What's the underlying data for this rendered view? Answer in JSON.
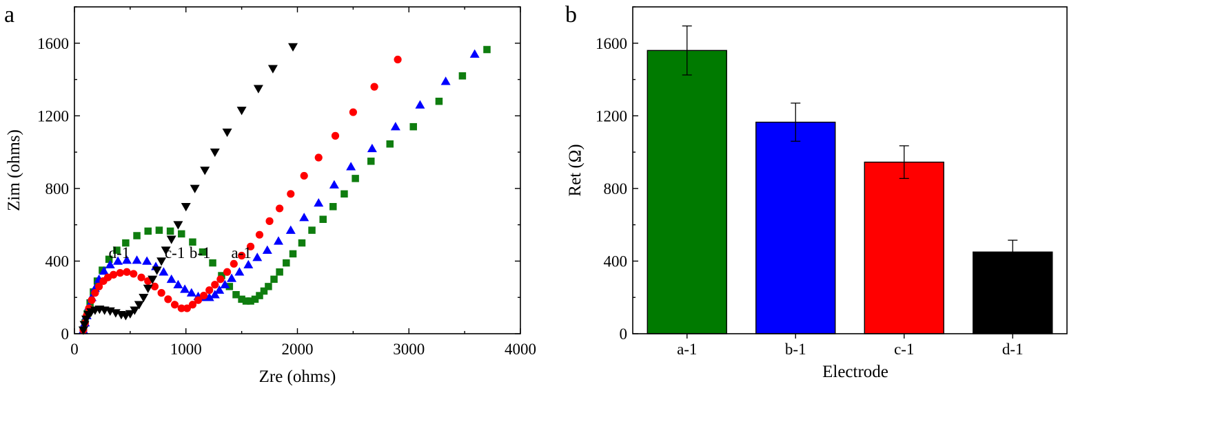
{
  "panels": {
    "a": {
      "letter": "a"
    },
    "b": {
      "letter": "b"
    }
  },
  "chart_data": [
    {
      "type": "scatter",
      "panel": "a",
      "xlabel": "Zre (ohms)",
      "ylabel": "Zim (ohms)",
      "xlim": [
        0,
        4000
      ],
      "ylim": [
        0,
        1800
      ],
      "xticks": [
        0,
        1000,
        2000,
        3000,
        4000
      ],
      "yticks": [
        0,
        400,
        800,
        1200,
        1600
      ],
      "series": [
        {
          "label": "a-1",
          "color": "#0f7d0f",
          "marker": "square",
          "points": [
            [
              80,
              20
            ],
            [
              95,
              60
            ],
            [
              115,
              110
            ],
            [
              140,
              170
            ],
            [
              170,
              230
            ],
            [
              205,
              290
            ],
            [
              250,
              350
            ],
            [
              310,
              410
            ],
            [
              380,
              460
            ],
            [
              460,
              500
            ],
            [
              560,
              540
            ],
            [
              660,
              565
            ],
            [
              760,
              570
            ],
            [
              860,
              565
            ],
            [
              960,
              550
            ],
            [
              1060,
              505
            ],
            [
              1150,
              450
            ],
            [
              1240,
              390
            ],
            [
              1320,
              320
            ],
            [
              1390,
              260
            ],
            [
              1450,
              215
            ],
            [
              1500,
              190
            ],
            [
              1540,
              180
            ],
            [
              1580,
              180
            ],
            [
              1620,
              190
            ],
            [
              1660,
              210
            ],
            [
              1700,
              235
            ],
            [
              1740,
              260
            ],
            [
              1790,
              300
            ],
            [
              1840,
              340
            ],
            [
              1900,
              390
            ],
            [
              1960,
              440
            ],
            [
              2040,
              500
            ],
            [
              2130,
              570
            ],
            [
              2230,
              630
            ],
            [
              2320,
              700
            ],
            [
              2420,
              770
            ],
            [
              2520,
              855
            ],
            [
              2660,
              950
            ],
            [
              2830,
              1045
            ],
            [
              3040,
              1140
            ],
            [
              3270,
              1280
            ],
            [
              3480,
              1420
            ],
            [
              3700,
              1565
            ]
          ]
        },
        {
          "label": "b-1",
          "color": "#0000ff",
          "marker": "triangle-up",
          "points": [
            [
              80,
              20
            ],
            [
              95,
              60
            ],
            [
              110,
              100
            ],
            [
              130,
              150
            ],
            [
              155,
              200
            ],
            [
              185,
              250
            ],
            [
              220,
              300
            ],
            [
              265,
              345
            ],
            [
              320,
              380
            ],
            [
              390,
              400
            ],
            [
              470,
              405
            ],
            [
              560,
              405
            ],
            [
              650,
              400
            ],
            [
              730,
              370
            ],
            [
              800,
              340
            ],
            [
              870,
              300
            ],
            [
              930,
              270
            ],
            [
              990,
              245
            ],
            [
              1050,
              225
            ],
            [
              1110,
              205
            ],
            [
              1160,
              200
            ],
            [
              1210,
              200
            ],
            [
              1260,
              215
            ],
            [
              1300,
              240
            ],
            [
              1350,
              270
            ],
            [
              1410,
              305
            ],
            [
              1480,
              340
            ],
            [
              1560,
              380
            ],
            [
              1640,
              420
            ],
            [
              1730,
              460
            ],
            [
              1830,
              510
            ],
            [
              1940,
              570
            ],
            [
              2060,
              640
            ],
            [
              2190,
              720
            ],
            [
              2330,
              820
            ],
            [
              2480,
              920
            ],
            [
              2670,
              1020
            ],
            [
              2880,
              1140
            ],
            [
              3100,
              1260
            ],
            [
              3330,
              1390
            ],
            [
              3590,
              1540
            ]
          ]
        },
        {
          "label": "c-1",
          "color": "#ff0000",
          "marker": "circle",
          "points": [
            [
              80,
              20
            ],
            [
              95,
              60
            ],
            [
              110,
              100
            ],
            [
              130,
              140
            ],
            [
              155,
              185
            ],
            [
              185,
              225
            ],
            [
              220,
              260
            ],
            [
              260,
              290
            ],
            [
              300,
              310
            ],
            [
              350,
              325
            ],
            [
              410,
              335
            ],
            [
              470,
              340
            ],
            [
              530,
              330
            ],
            [
              600,
              310
            ],
            [
              660,
              290
            ],
            [
              720,
              260
            ],
            [
              780,
              225
            ],
            [
              840,
              190
            ],
            [
              900,
              160
            ],
            [
              960,
              140
            ],
            [
              1010,
              140
            ],
            [
              1060,
              160
            ],
            [
              1110,
              185
            ],
            [
              1160,
              210
            ],
            [
              1210,
              240
            ],
            [
              1260,
              270
            ],
            [
              1310,
              300
            ],
            [
              1370,
              340
            ],
            [
              1430,
              385
            ],
            [
              1500,
              430
            ],
            [
              1580,
              480
            ],
            [
              1660,
              545
            ],
            [
              1750,
              620
            ],
            [
              1840,
              690
            ],
            [
              1940,
              770
            ],
            [
              2060,
              870
            ],
            [
              2190,
              970
            ],
            [
              2340,
              1090
            ],
            [
              2500,
              1220
            ],
            [
              2690,
              1360
            ],
            [
              2900,
              1510
            ]
          ]
        },
        {
          "label": "d-1",
          "color": "#000000",
          "marker": "triangle-down",
          "points": [
            [
              80,
              20
            ],
            [
              90,
              50
            ],
            [
              105,
              80
            ],
            [
              125,
              105
            ],
            [
              150,
              120
            ],
            [
              185,
              130
            ],
            [
              225,
              135
            ],
            [
              270,
              130
            ],
            [
              320,
              125
            ],
            [
              370,
              115
            ],
            [
              420,
              105
            ],
            [
              460,
              100
            ],
            [
              500,
              110
            ],
            [
              540,
              130
            ],
            [
              580,
              160
            ],
            [
              620,
              200
            ],
            [
              660,
              250
            ],
            [
              700,
              300
            ],
            [
              740,
              350
            ],
            [
              780,
              400
            ],
            [
              820,
              460
            ],
            [
              870,
              520
            ],
            [
              930,
              600
            ],
            [
              1000,
              700
            ],
            [
              1080,
              800
            ],
            [
              1170,
              900
            ],
            [
              1260,
              1000
            ],
            [
              1370,
              1110
            ],
            [
              1500,
              1230
            ],
            [
              1650,
              1350
            ],
            [
              1780,
              1460
            ],
            [
              1960,
              1580
            ]
          ]
        }
      ],
      "annotations": [
        "d-1",
        "c-1",
        "b-1",
        "a-1"
      ]
    },
    {
      "type": "bar",
      "panel": "b",
      "xlabel": "Electrode",
      "ylabel": "Ret (Ω)",
      "ylim": [
        0,
        1800
      ],
      "yticks": [
        0,
        400,
        800,
        1200,
        1600
      ],
      "categories": [
        "a-1",
        "b-1",
        "c-1",
        "d-1"
      ],
      "values": [
        1560,
        1165,
        945,
        450
      ],
      "errors": [
        135,
        105,
        90,
        65
      ],
      "colors": [
        "#007a00",
        "#0000ff",
        "#ff0000",
        "#000000"
      ]
    }
  ]
}
